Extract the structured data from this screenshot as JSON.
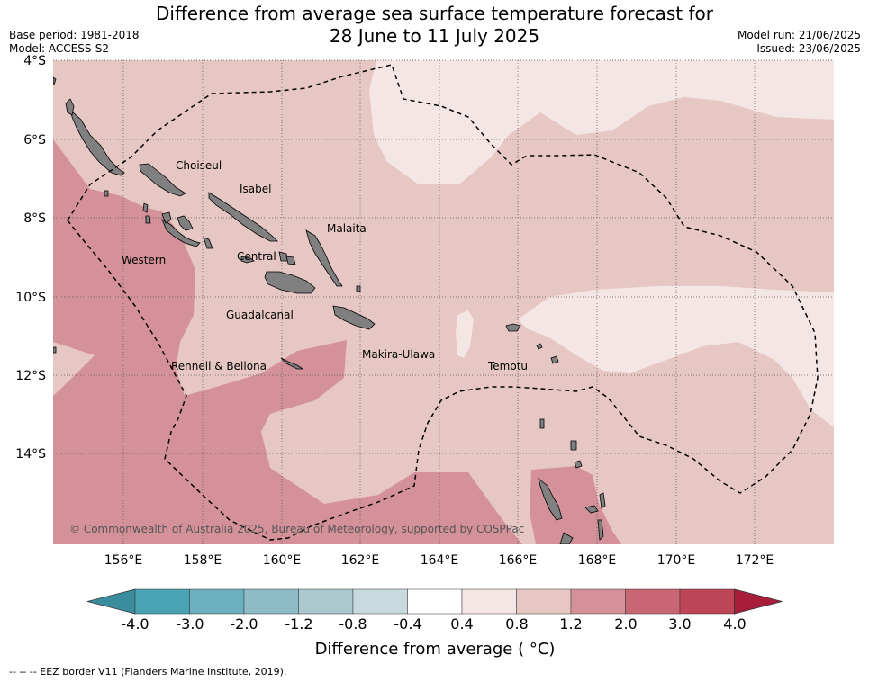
{
  "title": {
    "line1": "Difference from average sea surface temperature forecast for",
    "line2": "28 June to 11 July 2025"
  },
  "meta": {
    "base_period": "Base period: 1981-2018",
    "model": "Model: ACCESS-S2",
    "model_run": "Model run: 21/06/2025",
    "issued": "Issued: 23/06/2025"
  },
  "map": {
    "lat_labels": [
      "4°S",
      "6°S",
      "8°S",
      "10°S",
      "12°S",
      "14°S"
    ],
    "lon_labels": [
      "156°E",
      "158°E",
      "160°E",
      "162°E",
      "164°E",
      "166°E",
      "168°E",
      "170°E",
      "172°E"
    ],
    "places": [
      "Choiseul",
      "Isabel",
      "Malaita",
      "Western",
      "Central",
      "Guadalcanal",
      "Makira-Ulawa",
      "Rennell & Bellona",
      "Temotu"
    ],
    "copyright": "© Commonwealth of Australia 2025, Bureau of Meteorology, supported by COSPPac",
    "colors": {
      "band_0_4_0_8": "#f4e6e4",
      "band_0_8_1_2": "#e7c7c3",
      "band_1_2_2_0": "#d4919a",
      "land": "#808080",
      "eez_line": "#000000"
    }
  },
  "colorbar": {
    "ticks": [
      "-4.0",
      "-3.0",
      "-2.0",
      "-1.2",
      "-0.8",
      "-0.4",
      "0.4",
      "0.8",
      "1.2",
      "2.0",
      "3.0",
      "4.0"
    ],
    "colors": [
      "#3a8d9c",
      "#4aa3b5",
      "#6cb0c0",
      "#8dbcc6",
      "#aac8cd",
      "#c8dadd",
      "#ffffff",
      "#f4e6e4",
      "#e7c7c3",
      "#d4919a",
      "#c86673",
      "#bd4556",
      "#a81e3a"
    ],
    "label": "Difference from average ( °C)"
  },
  "footnote": "-- -- -- EEZ border V11 (Flanders Marine Institute, 2019)."
}
